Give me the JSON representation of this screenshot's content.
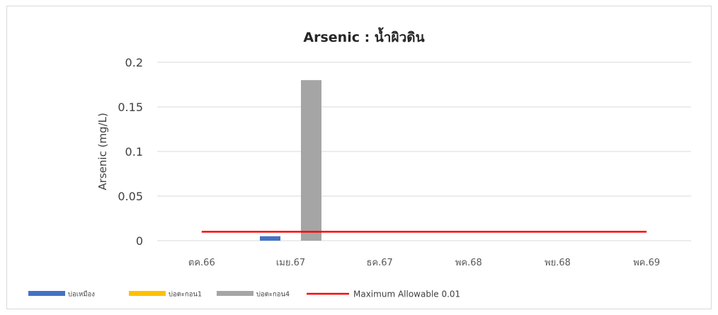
{
  "chart_data": {
    "type": "bar",
    "title": "Arsenic : น้ำผิวดิน",
    "ylabel": "Arsenic (mg/L)",
    "xlabel": "",
    "ylim": [
      0,
      0.2
    ],
    "yticks": [
      "0",
      "0.05",
      "0.1",
      "0.15",
      "0.2"
    ],
    "categories": [
      "ตค.66",
      "เมย.67",
      "ธค.67",
      "พค.68",
      "พย.68",
      "พค.69"
    ],
    "series": [
      {
        "name": "บ่อเหมือง",
        "color": "#4472c4",
        "values": [
          null,
          0.005,
          null,
          null,
          null,
          null
        ]
      },
      {
        "name": "บ่อตะกอน1",
        "color": "#ffc000",
        "values": [
          null,
          null,
          null,
          null,
          null,
          null
        ]
      },
      {
        "name": "บ่อตะกอน4",
        "color": "#a5a5a5",
        "values": [
          null,
          0.18,
          null,
          null,
          null,
          null
        ]
      }
    ],
    "limit_line": {
      "name": "Maximum Allowable 0.01",
      "value": 0.01,
      "color": "#ff0000"
    },
    "grid": true,
    "legend": "bottom"
  }
}
